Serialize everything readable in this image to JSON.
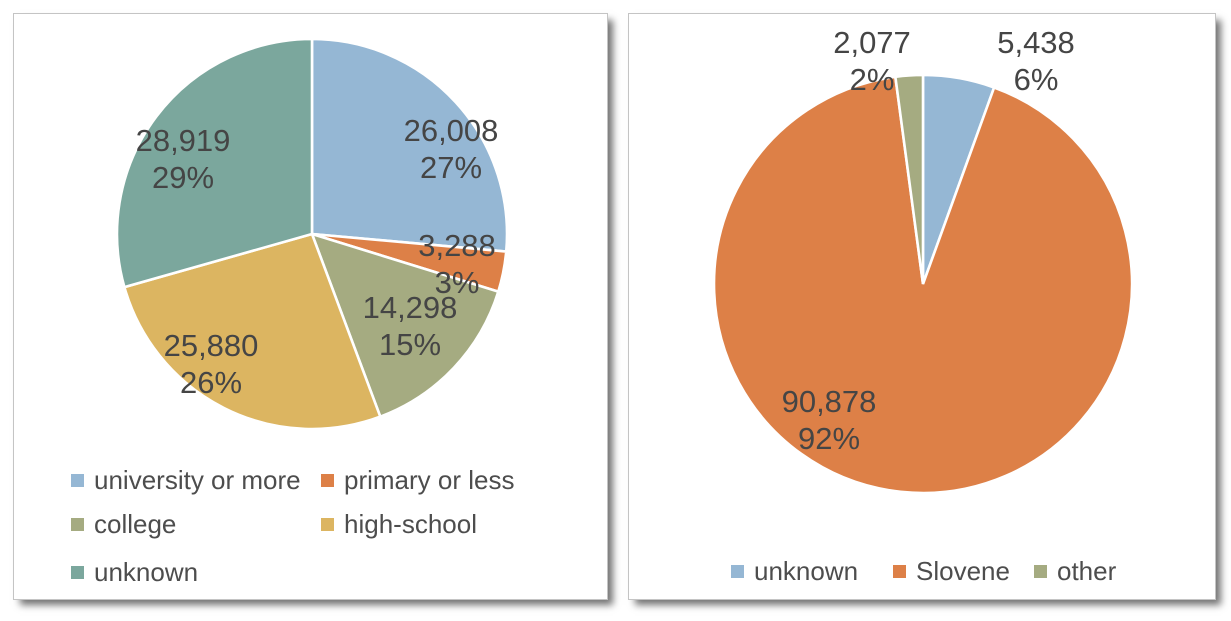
{
  "page": {
    "background_color": "#ffffff"
  },
  "theme": {
    "data_label_color": "#454545",
    "legend_text_color": "#4d4d4d",
    "slice_separator_color": "#ffffff",
    "panel_background": "#ffffff"
  },
  "chart_data": [
    {
      "name": "education",
      "type": "pie",
      "title": "",
      "categories": [
        "university or more",
        "primary or less",
        "college",
        "high-school",
        "unknown"
      ],
      "values": [
        26008,
        3288,
        14298,
        25880,
        28919
      ],
      "value_labels": [
        "26,008",
        "3,288",
        "14,298",
        "25,880",
        "28,919"
      ],
      "pct_labels": [
        "27%",
        "3%",
        "15%",
        "26%",
        "29%"
      ],
      "colors": [
        "#95B7D4",
        "#DD8047",
        "#A5AB81",
        "#DCB561",
        "#7BA79D"
      ],
      "total": 98393,
      "start_angle_deg": 0,
      "direction": "clockwise",
      "legend_position": "bottom",
      "legend_labels": [
        "university or more",
        "primary or less",
        "college",
        "high-school",
        "unknown"
      ]
    },
    {
      "name": "language",
      "type": "pie",
      "title": "",
      "categories": [
        "unknown",
        "Slovene",
        "other"
      ],
      "values": [
        5438,
        90878,
        2077
      ],
      "value_labels": [
        "5,438",
        "90,878",
        "2,077"
      ],
      "pct_labels": [
        "6%",
        "92%",
        "2%"
      ],
      "colors": [
        "#95B7D4",
        "#DD8047",
        "#A5AB81"
      ],
      "total": 98393,
      "start_angle_deg": 0,
      "direction": "clockwise",
      "legend_position": "bottom",
      "legend_labels": [
        "unknown",
        "Slovene",
        "other"
      ]
    }
  ]
}
